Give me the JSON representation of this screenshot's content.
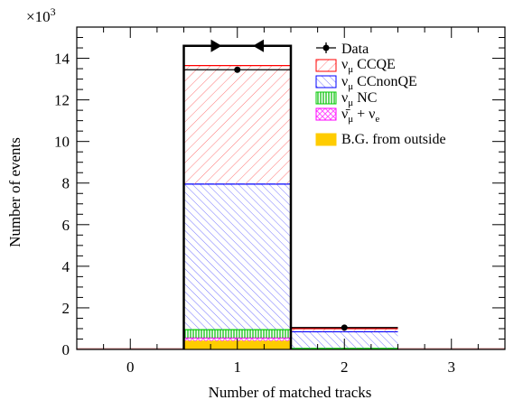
{
  "chart_data": {
    "type": "bar",
    "stacked": true,
    "xlabel": "Number of matched tracks",
    "ylabel": "Number of events",
    "y_multiplier_label": "×10",
    "y_multiplier_exp": "3",
    "categories": [
      "0",
      "1",
      "2",
      "3"
    ],
    "ylim": [
      0,
      15.5
    ],
    "yticks": [
      "0",
      "2",
      "4",
      "6",
      "8",
      "10",
      "12",
      "14"
    ],
    "series": [
      {
        "name": "B.G. from outside",
        "color": "#ffcc00",
        "values": [
          0,
          0.4,
          0.0,
          0
        ]
      },
      {
        "name": "ν̄μ + νe",
        "color": "#ff00ff",
        "values": [
          0,
          0.15,
          0.0,
          0
        ]
      },
      {
        "name": "νμ NC",
        "color": "#00cc00",
        "values": [
          0,
          0.4,
          0.05,
          0
        ]
      },
      {
        "name": "νμ CCnonQE",
        "color": "#0000ff",
        "values": [
          0,
          7.0,
          0.8,
          0
        ]
      },
      {
        "name": "νμ CCQE",
        "color": "#ff0000",
        "values": [
          0,
          5.7,
          0.15,
          0
        ]
      }
    ],
    "data_points": [
      {
        "x": "1",
        "y": 13.45
      },
      {
        "x": "2",
        "y": 1.05
      }
    ],
    "legend": {
      "placement": "top-right",
      "entries": [
        {
          "key": "data",
          "label": "Data"
        },
        {
          "key": "ccqe",
          "base": "ν",
          "sub": "μ",
          "text": " CCQE"
        },
        {
          "key": "ccnonqe",
          "base": "ν",
          "sub": "μ",
          "text": " CCnonQE"
        },
        {
          "key": "nc",
          "base": "ν",
          "sub": "μ",
          "text": " NC"
        },
        {
          "key": "bar",
          "base": "ν̄",
          "sub": "μ",
          "text": " + ν",
          "sub2": "e"
        },
        {
          "key": "bg",
          "label": "B.G. from outside"
        }
      ]
    },
    "selection_bin": "1"
  }
}
